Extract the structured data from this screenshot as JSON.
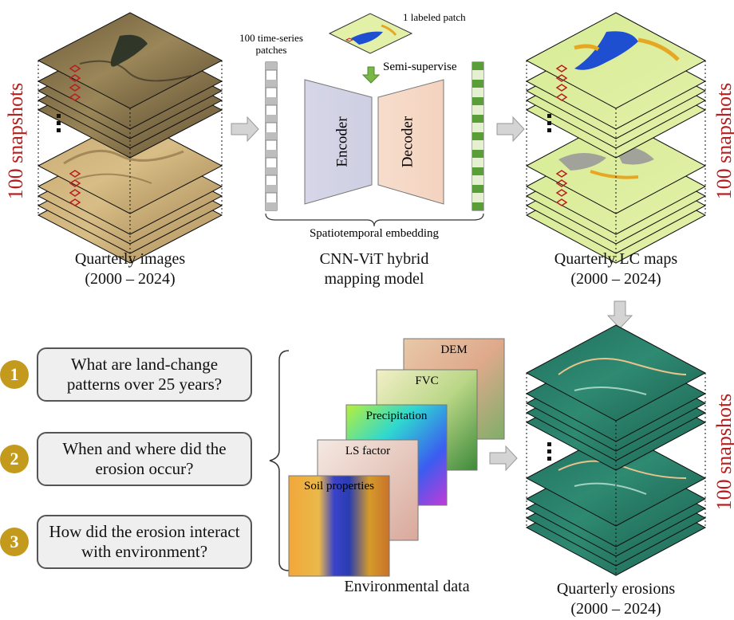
{
  "top_left": {
    "side_label": "100 snapshots",
    "caption_line1": "Quarterly images",
    "caption_line2": "(2000 – 2024)"
  },
  "model": {
    "patches_label_line1": "100 time-series",
    "patches_label_line2": "patches",
    "labeled_patch_label": "1 labeled patch",
    "semi_label": "Semi-supervise",
    "encoder_label": "Encoder",
    "decoder_label": "Decoder",
    "embedding_label": "Spatiotemporal embedding",
    "caption_line1": "CNN-ViT hybrid",
    "caption_line2": "mapping model"
  },
  "top_right": {
    "side_label": "100 snapshots",
    "caption_line1": "Quarterly LC maps",
    "caption_line2": "(2000 – 2024)"
  },
  "questions": [
    {
      "num": "1",
      "line1": "What are land-change",
      "line2": "patterns over 25 years?"
    },
    {
      "num": "2",
      "line1": "When and where did the",
      "line2": "erosion occur?"
    },
    {
      "num": "3",
      "line1": "How did the erosion interact",
      "line2": "with environment?"
    }
  ],
  "environment": {
    "layers": [
      "DEM",
      "FVC",
      "Precipitation",
      "LS factor",
      "Soil properties"
    ],
    "caption": "Environmental data"
  },
  "bottom_right": {
    "side_label": "100 snapshots",
    "caption_line1": "Quarterly erosions",
    "caption_line2": "(2000 – 2024)"
  },
  "colors": {
    "snapshot_red": "#b81e1e",
    "question_badge": "#c49a1c",
    "encoder_fill": "#d9d9ea",
    "decoder_fill": "#f6dccb",
    "patch_green": "#5a9e3a",
    "erosion_teal": "#2e7d6b",
    "lc_green": "#d9ec9a"
  }
}
